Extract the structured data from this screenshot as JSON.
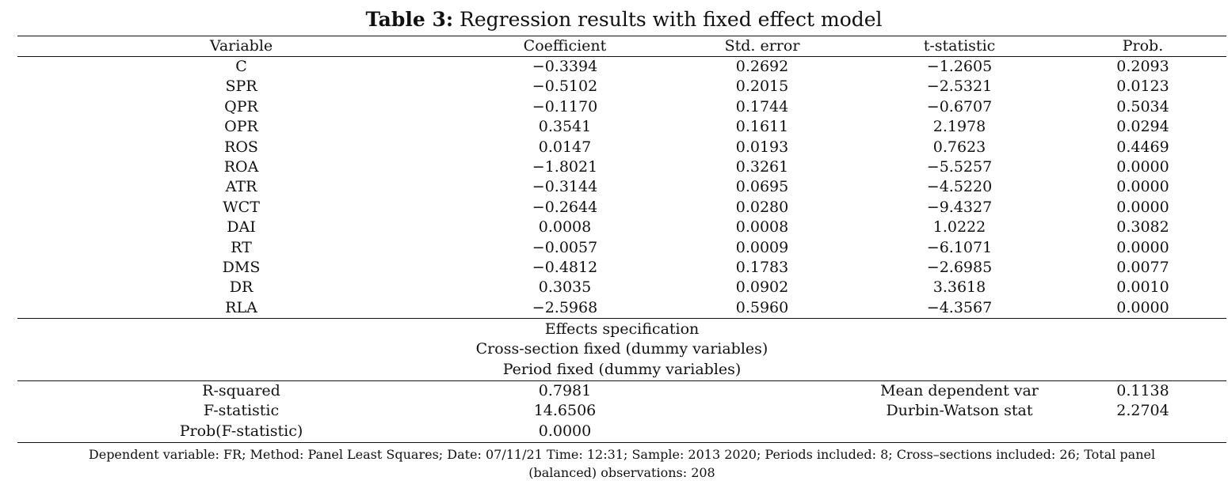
{
  "table": {
    "title_prefix": "Table 3:",
    "title_text": " Regression results with fixed effect model",
    "headers": [
      "Variable",
      "Coefficient",
      "Std. error",
      "t-statistic",
      "Prob."
    ],
    "rows": [
      [
        "C",
        "−0.3394",
        "0.2692",
        "−1.2605",
        "0.2093"
      ],
      [
        "SPR",
        "−0.5102",
        "0.2015",
        "−2.5321",
        "0.0123"
      ],
      [
        "QPR",
        "−0.1170",
        "0.1744",
        "−0.6707",
        "0.5034"
      ],
      [
        "OPR",
        "0.3541",
        "0.1611",
        "2.1978",
        "0.0294"
      ],
      [
        "ROS",
        "0.0147",
        "0.0193",
        "0.7623",
        "0.4469"
      ],
      [
        "ROA",
        "−1.8021",
        "0.3261",
        "−5.5257",
        "0.0000"
      ],
      [
        "ATR",
        "−0.3144",
        "0.0695",
        "−4.5220",
        "0.0000"
      ],
      [
        "WCT",
        "−0.2644",
        "0.0280",
        "−9.4327",
        "0.0000"
      ],
      [
        "DAI",
        "0.0008",
        "0.0008",
        "1.0222",
        "0.3082"
      ],
      [
        "RT",
        "−0.0057",
        "0.0009",
        "−6.1071",
        "0.0000"
      ],
      [
        "DMS",
        "−0.4812",
        "0.1783",
        "−2.6985",
        "0.0077"
      ],
      [
        "DR",
        "0.3035",
        "0.0902",
        "3.3618",
        "0.0010"
      ],
      [
        "RLA",
        "−2.5968",
        "0.5960",
        "−4.3567",
        "0.0000"
      ]
    ],
    "effects": [
      "Effects specification",
      "Cross-section fixed (dummy variables)",
      "Period fixed (dummy variables)"
    ],
    "stats": [
      [
        "R-squared",
        "0.7981",
        "",
        "Mean dependent var",
        "0.1138"
      ],
      [
        "F-statistic",
        "14.6506",
        "",
        "Durbin-Watson stat",
        "2.2704"
      ],
      [
        "Prob(F-statistic)",
        "0.0000",
        "",
        "",
        ""
      ]
    ],
    "footnote": "Dependent variable: FR; Method: Panel Least Squares; Date: 07/11/21 Time: 12:31; Sample: 2013 2020; Periods included: 8; Cross–sections included: 26; Total panel (balanced) observations: 208"
  }
}
